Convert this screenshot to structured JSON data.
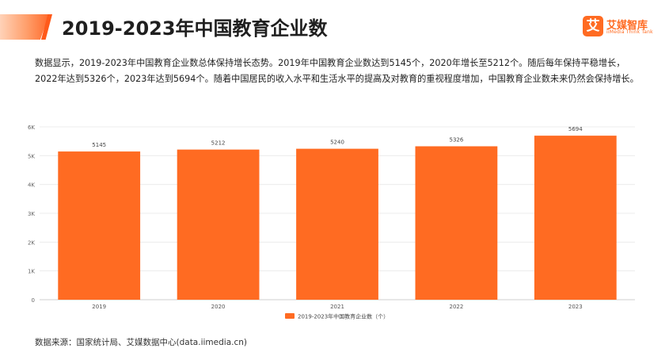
{
  "header": {
    "title": "2019-2023年中国教育企业数",
    "logo": {
      "mark": "艾",
      "name": "艾媒智库",
      "sub": "iiMedia Think Tank"
    }
  },
  "description": "数据显示，2019-2023年中国教育企业数总体保持增长态势。2019年中国教育企业数达到5145个，2020年增长至5212个。随后每年保持平稳增长，2022年达到5326个，2023年达到5694个。随着中国居民的收入水平和生活水平的提高及对教育的重视程度增加，中国教育企业数未来仍然会保持增长。",
  "source": "数据来源：国家统计局、艾媒数据中心(data.iimedia.cn)",
  "colors": {
    "bar": "#ff6b22",
    "accent": "#ff5a1a"
  },
  "chart_data": {
    "type": "bar",
    "categories": [
      "2019",
      "2020",
      "2021",
      "2022",
      "2023"
    ],
    "series": [
      {
        "name": "2019-2023年中国教育企业数（个）",
        "values": [
          5145,
          5212,
          5240,
          5326,
          5694
        ]
      }
    ],
    "data_labels": [
      "5145",
      "5212",
      "5240",
      "5326",
      "5694"
    ],
    "ylim": [
      0,
      6000
    ],
    "yticks": [
      0,
      1000,
      2000,
      3000,
      4000,
      5000,
      6000
    ],
    "ytick_labels": [
      "0",
      "1K",
      "2K",
      "3K",
      "4K",
      "5K",
      "6K"
    ],
    "grid": true,
    "legend": "bottom"
  }
}
